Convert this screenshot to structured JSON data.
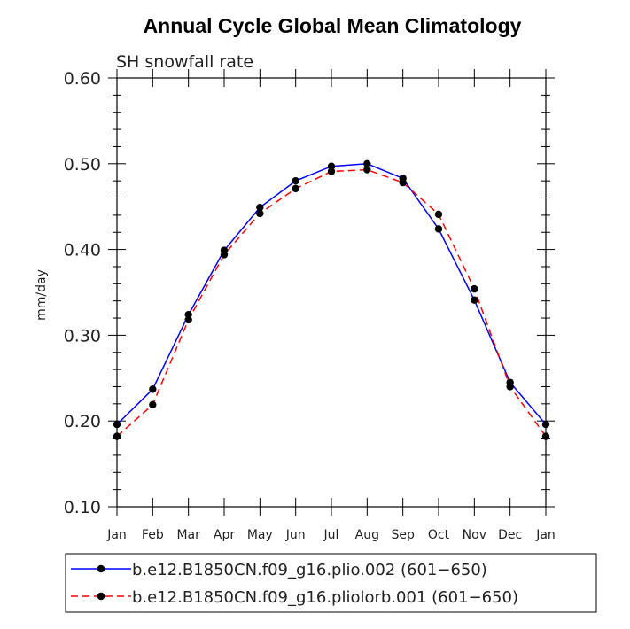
{
  "chart_data": {
    "type": "line",
    "title": "Annual Cycle Global Mean Climatology",
    "subtitle": "SH snowfall rate",
    "xlabel": "",
    "ylabel": "mm/day",
    "ylim": [
      0.1,
      0.6
    ],
    "yticks": [
      "0.10",
      "0.20",
      "0.30",
      "0.40",
      "0.50",
      "0.60"
    ],
    "categories": [
      "Jan",
      "Feb",
      "Mar",
      "Apr",
      "May",
      "Jun",
      "Jul",
      "Aug",
      "Sep",
      "Oct",
      "Nov",
      "Dec",
      "Jan"
    ],
    "series": [
      {
        "name": "b.e12.B1850CN.f09_g16.plio.002 (601−650)",
        "color": "#0000ff",
        "dash": "solid",
        "values": [
          0.196,
          0.237,
          0.324,
          0.399,
          0.449,
          0.48,
          0.497,
          0.5,
          0.483,
          0.424,
          0.341,
          0.245,
          0.196
        ]
      },
      {
        "name": "b.e12.B1850CN.f09_g16.pliolorb.001 (601−650)",
        "color": "#ff0000",
        "dash": "dashed",
        "values": [
          0.182,
          0.219,
          0.318,
          0.394,
          0.442,
          0.471,
          0.491,
          0.493,
          0.478,
          0.441,
          0.354,
          0.24,
          0.182
        ]
      }
    ],
    "grid": false,
    "legend_position": "bottom"
  }
}
